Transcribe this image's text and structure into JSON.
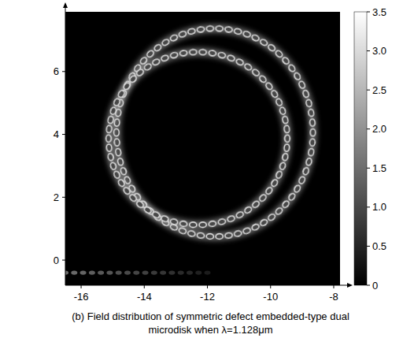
{
  "chart_data": {
    "type": "heatmap",
    "title": "(b) Field distribution of symmetric defect embedded-type dual microdisk when λ=1.128μm",
    "xlim": [
      -16.5,
      -7.8
    ],
    "xticks": [
      -16,
      -14,
      -12,
      -10,
      -8
    ],
    "ylim": [
      -0.8,
      7.9
    ],
    "yticks": [
      0,
      2,
      4,
      6
    ],
    "rings": [
      {
        "cx": -11.77,
        "cy": 4.06,
        "rx": 3.11,
        "ry": 3.31,
        "intensity": 3.0,
        "lobes": 66
      },
      {
        "cx": -12.3,
        "cy": 3.87,
        "rx": 2.83,
        "ry": 2.75,
        "intensity": 3.0,
        "lobes": 58
      }
    ],
    "waveguide": {
      "y": -0.4,
      "x": [
        -16.5,
        -12
      ],
      "intensity": 1.5
    },
    "colorbar": {
      "range": [
        0,
        3.5
      ],
      "ticks": [
        0,
        0.5,
        {
          "value": 1,
          "label": "1.0"
        },
        1.5,
        {
          "value": 2,
          "label": "2.0"
        },
        2.5,
        {
          "value": 3,
          "label": "3.0"
        },
        3.5
      ]
    }
  }
}
